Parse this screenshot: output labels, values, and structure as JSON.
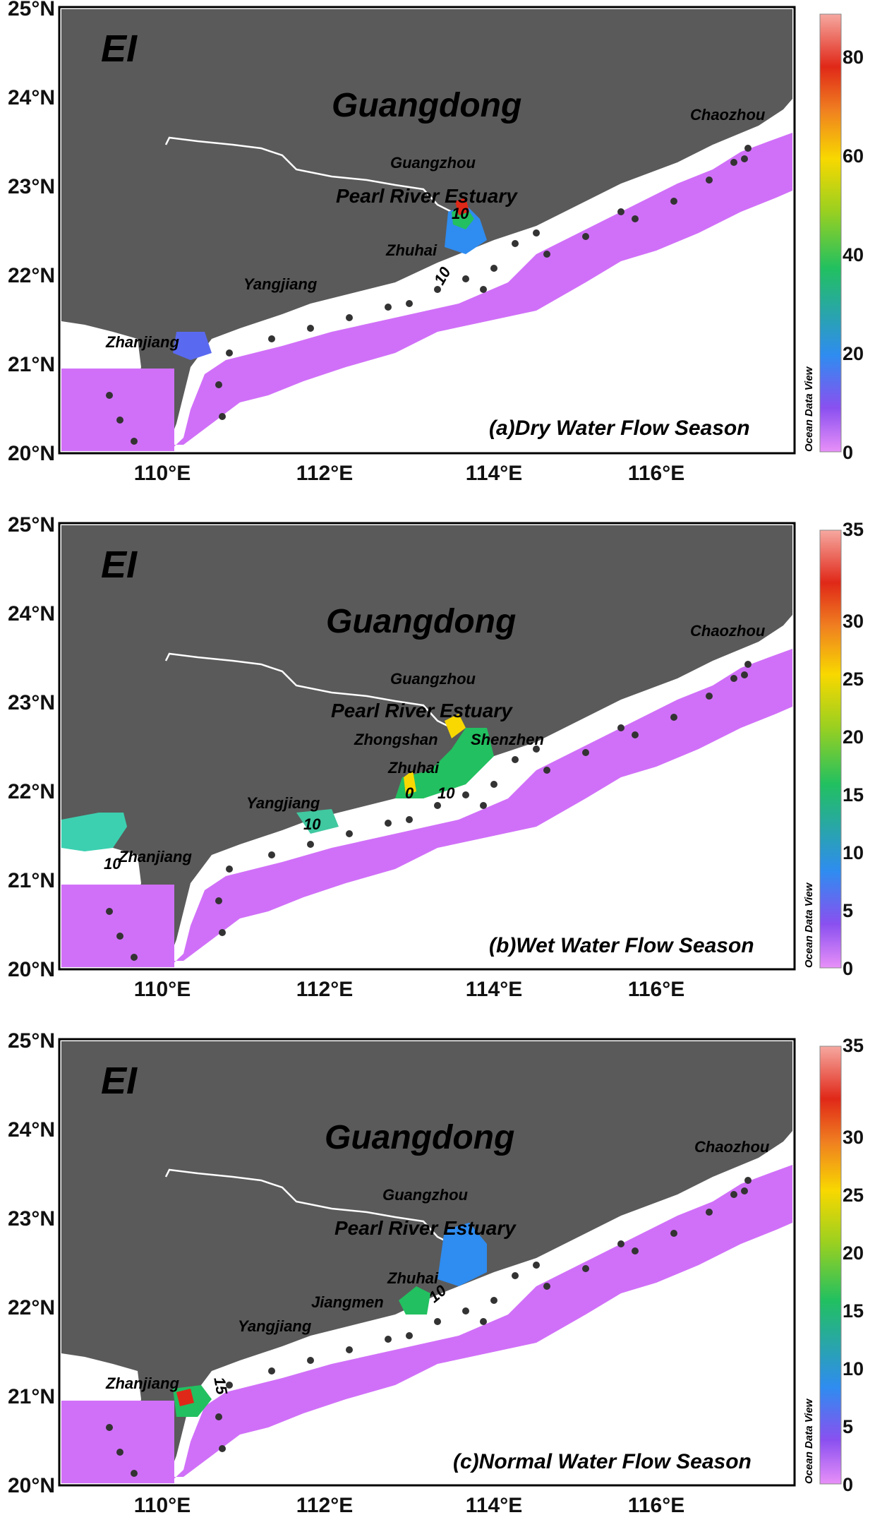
{
  "map_title": "EI",
  "region_label": "Guangdong",
  "latitude_ticks": [
    "25°N",
    "24°N",
    "23°N",
    "22°N",
    "21°N",
    "20°N"
  ],
  "longitude_ticks": [
    "110°E",
    "112°E",
    "114°E",
    "116°E"
  ],
  "colorbar_credit": "Ocean Data View",
  "colors": {
    "land": "#5a5a5a",
    "low": "#d070f8",
    "high": "#e03020"
  },
  "panels": [
    {
      "season_label": "(a)Dry Water Flow Season",
      "colorbar_ticks": [
        "0",
        "20",
        "40",
        "60",
        "80"
      ],
      "colorbar_max": 90,
      "contour_labels": [
        "10",
        "10"
      ],
      "cities": {
        "chaozhou": "Chaozhou",
        "guangzhou": "Guangzhou",
        "estuary": "Pearl River Estuary",
        "zhuhai": "Zhuhai",
        "yangjiang": "Yangjiang",
        "zhanjiang": "Zhanjiang"
      }
    },
    {
      "season_label": "(b)Wet Water Flow Season",
      "colorbar_ticks": [
        "0",
        "5",
        "10",
        "15",
        "20",
        "25",
        "30",
        "35"
      ],
      "colorbar_max": 35,
      "contour_labels": [
        "0",
        "10",
        "10",
        "10"
      ],
      "cities": {
        "chaozhou": "Chaozhou",
        "guangzhou": "Guangzhou",
        "estuary": "Pearl River Estuary",
        "zhongshan": "Zhongshan",
        "shenzhen": "Shenzhen",
        "zhuhai": "Zhuhai",
        "yangjiang": "Yangjiang",
        "zhanjiang": "Zhanjiang"
      }
    },
    {
      "season_label": "(c)Normal Water Flow Season",
      "colorbar_ticks": [
        "0",
        "5",
        "10",
        "15",
        "20",
        "25",
        "30",
        "35"
      ],
      "colorbar_max": 35,
      "contour_labels": [
        "15",
        "10"
      ],
      "cities": {
        "chaozhou": "Chaozhou",
        "guangzhou": "Guangzhou",
        "estuary": "Pearl River Estuary",
        "zhuhai": "Zhuhai",
        "jiangmen": "Jiangmen",
        "yangjiang": "Yangjiang",
        "zhanjiang": "Zhanjiang"
      }
    }
  ]
}
